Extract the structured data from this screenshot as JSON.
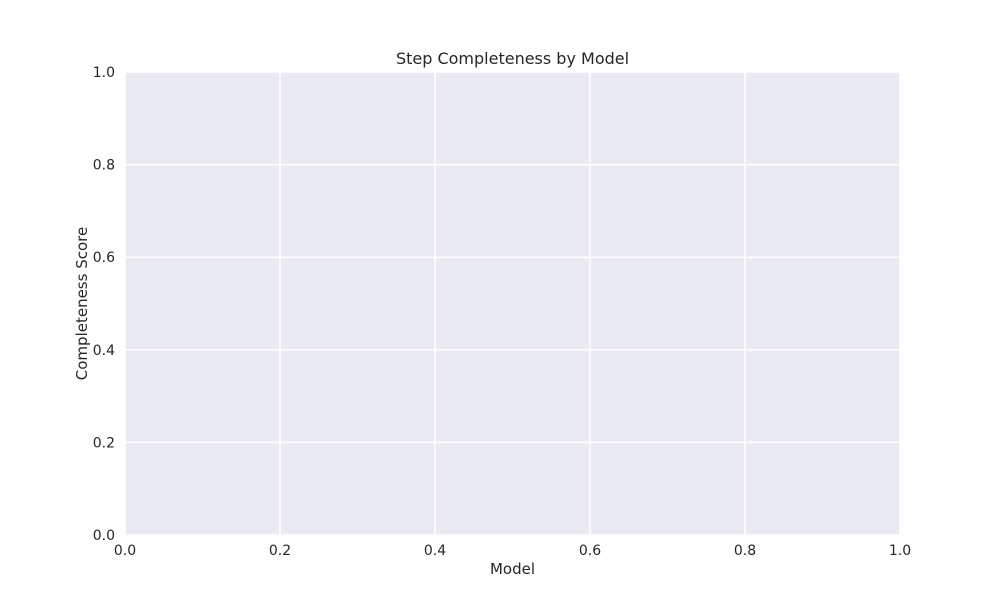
{
  "chart_data": {
    "type": "bar",
    "title": "Step Completeness by Model",
    "xlabel": "Model",
    "ylabel": "Completeness Score",
    "xlim": [
      0.0,
      1.0
    ],
    "ylim": [
      0.0,
      1.0
    ],
    "x_ticks": [
      "0.0",
      "0.2",
      "0.4",
      "0.6",
      "0.8",
      "1.0"
    ],
    "y_ticks": [
      "0.0",
      "0.2",
      "0.4",
      "0.6",
      "0.8",
      "1.0"
    ],
    "categories": [],
    "values": [],
    "grid": true,
    "legend": "none",
    "colors": {
      "plot_background": "#eaeaf2",
      "grid": "#ffffff",
      "text": "#262626"
    }
  }
}
